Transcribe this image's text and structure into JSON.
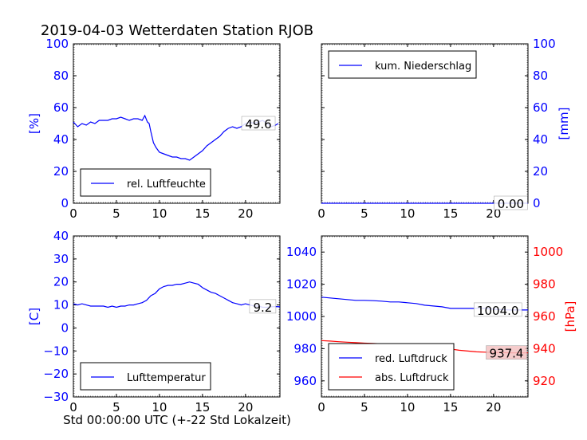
{
  "title": "2019-04-03 Wetterdaten Station RJOB",
  "xlabel": "Std 00:00:00 UTC (+-22 Std Lokalzeit)",
  "chart_data": [
    {
      "type": "line",
      "panel": "top-left",
      "ylabel": "[%]",
      "xlim": [
        0,
        24
      ],
      "ylim": [
        0,
        100
      ],
      "xticks": [
        0,
        5,
        10,
        15,
        20
      ],
      "yticks": [
        0,
        20,
        40,
        60,
        80,
        100
      ],
      "legend": "bottom-left",
      "series": [
        {
          "name": "rel. Luftfeuchte",
          "color": "#0000ff",
          "x": [
            0,
            0.5,
            1,
            1.5,
            2,
            2.5,
            3,
            3.5,
            4,
            4.5,
            5,
            5.5,
            6,
            6.5,
            7,
            7.5,
            8,
            8.3,
            8.6,
            8.8,
            9,
            9.3,
            9.6,
            10,
            10.5,
            11,
            11.5,
            12,
            12.5,
            13,
            13.5,
            14,
            14.5,
            15,
            15.5,
            16,
            16.5,
            17,
            17.5,
            18,
            18.5,
            19,
            19.5,
            20,
            20.5,
            21,
            21.5,
            22,
            22.5,
            23,
            23.5,
            23.8
          ],
          "y": [
            51,
            48,
            50,
            49,
            51,
            50,
            52,
            52,
            52,
            53,
            53,
            54,
            53,
            52,
            53,
            53,
            52,
            55,
            51,
            50,
            45,
            38,
            35,
            32,
            31,
            30,
            29,
            29,
            28,
            28,
            27,
            29,
            31,
            33,
            36,
            38,
            40,
            42,
            45,
            47,
            48,
            47,
            48,
            50,
            51,
            50,
            51,
            52,
            50,
            48,
            49,
            50
          ]
        }
      ],
      "annotation": {
        "x": 21.5,
        "text": "49.6"
      }
    },
    {
      "type": "line",
      "panel": "top-right",
      "ylabel": "[mm]",
      "xlim": [
        0,
        24
      ],
      "ylim": [
        0,
        100
      ],
      "xticks": [
        0,
        5,
        10,
        15,
        20
      ],
      "yticks": [
        0,
        20,
        40,
        60,
        80,
        100
      ],
      "legend": "top-left",
      "series": [
        {
          "name": "kum. Niederschlag",
          "color": "#0000ff",
          "x": [
            0,
            24
          ],
          "y": [
            0,
            0
          ]
        }
      ],
      "annotation": {
        "x": 22,
        "text": "0.00"
      }
    },
    {
      "type": "line",
      "panel": "bottom-left",
      "ylabel": "[C]",
      "xlim": [
        0,
        24
      ],
      "ylim": [
        -30,
        40
      ],
      "xticks": [
        0,
        5,
        10,
        15,
        20
      ],
      "yticks": [
        -30,
        -20,
        -10,
        0,
        10,
        20,
        30,
        40
      ],
      "legend": "bottom-left",
      "series": [
        {
          "name": "Lufttemperatur",
          "color": "#0000ff",
          "x": [
            0,
            0.5,
            1,
            1.5,
            2,
            2.5,
            3,
            3.5,
            4,
            4.5,
            5,
            5.5,
            6,
            6.5,
            7,
            7.5,
            8,
            8.5,
            9,
            9.5,
            10,
            10.5,
            11,
            11.5,
            12,
            12.5,
            13,
            13.5,
            14,
            14.5,
            15,
            15.5,
            16,
            16.5,
            17,
            17.5,
            18,
            18.5,
            19,
            19.5,
            20,
            20.5,
            21,
            21.5,
            22,
            22.5,
            23,
            23.5,
            24
          ],
          "y": [
            10.5,
            10,
            10.5,
            10,
            9.5,
            9.5,
            9.5,
            9.5,
            9,
            9.5,
            9,
            9.5,
            9.5,
            10,
            10,
            10.5,
            11,
            12,
            14,
            15,
            17,
            18,
            18.5,
            18.5,
            19,
            19,
            19.5,
            20,
            19.5,
            19,
            17.5,
            16.5,
            15.5,
            15,
            14,
            13,
            12,
            11,
            10.5,
            10,
            10.5,
            10,
            9.5,
            9.5,
            9,
            9,
            9.2,
            9.3,
            9.2
          ]
        }
      ],
      "annotation": {
        "x": 22,
        "text": "9.2"
      }
    },
    {
      "type": "line",
      "panel": "bottom-right",
      "ylabel": "",
      "ylabel_right": "[hPa]",
      "xlim": [
        0,
        24
      ],
      "ylim_left": [
        950,
        1050
      ],
      "ylim_right": [
        910,
        1010
      ],
      "xticks": [
        0,
        5,
        10,
        15,
        20
      ],
      "yticks_left": [
        960,
        980,
        1000,
        1020,
        1040
      ],
      "yticks_right": [
        920,
        940,
        960,
        980,
        1000
      ],
      "legend": "bottom-left",
      "series": [
        {
          "name": "red. Luftdruck",
          "color": "#0000ff",
          "axis": "left",
          "x": [
            0,
            1,
            2,
            3,
            4,
            5,
            6,
            7,
            8,
            9,
            10,
            11,
            12,
            13,
            14,
            15,
            16,
            17,
            18,
            19,
            20,
            21,
            22,
            23,
            24
          ],
          "y": [
            1012,
            1011.5,
            1011,
            1010.5,
            1010,
            1010,
            1009.8,
            1009.5,
            1009,
            1009,
            1008.5,
            1008,
            1007,
            1006.5,
            1006,
            1005,
            1005,
            1005,
            1005,
            1005,
            1004.5,
            1004.2,
            1004,
            1004,
            1004
          ]
        },
        {
          "name": "abs. Luftdruck",
          "color": "#ff0000",
          "axis": "right",
          "x": [
            0,
            1,
            2,
            3,
            4,
            5,
            6,
            7,
            8,
            9,
            10,
            11,
            12,
            13,
            14,
            15,
            16,
            17,
            18,
            19,
            20,
            21,
            22,
            23,
            24
          ],
          "y": [
            945,
            944.7,
            944.3,
            944,
            943.7,
            943.4,
            943.2,
            943,
            942.8,
            942.7,
            942.5,
            942.2,
            941.8,
            941.3,
            940.6,
            939.8,
            939,
            938.5,
            938,
            937.8,
            937.6,
            937.5,
            937.4,
            937.4,
            937.4
          ]
        }
      ],
      "annotations": [
        {
          "x": 20.5,
          "text": "1004.0",
          "axis": "left"
        },
        {
          "x": 21.5,
          "text": "937.4",
          "axis": "right"
        }
      ]
    }
  ]
}
